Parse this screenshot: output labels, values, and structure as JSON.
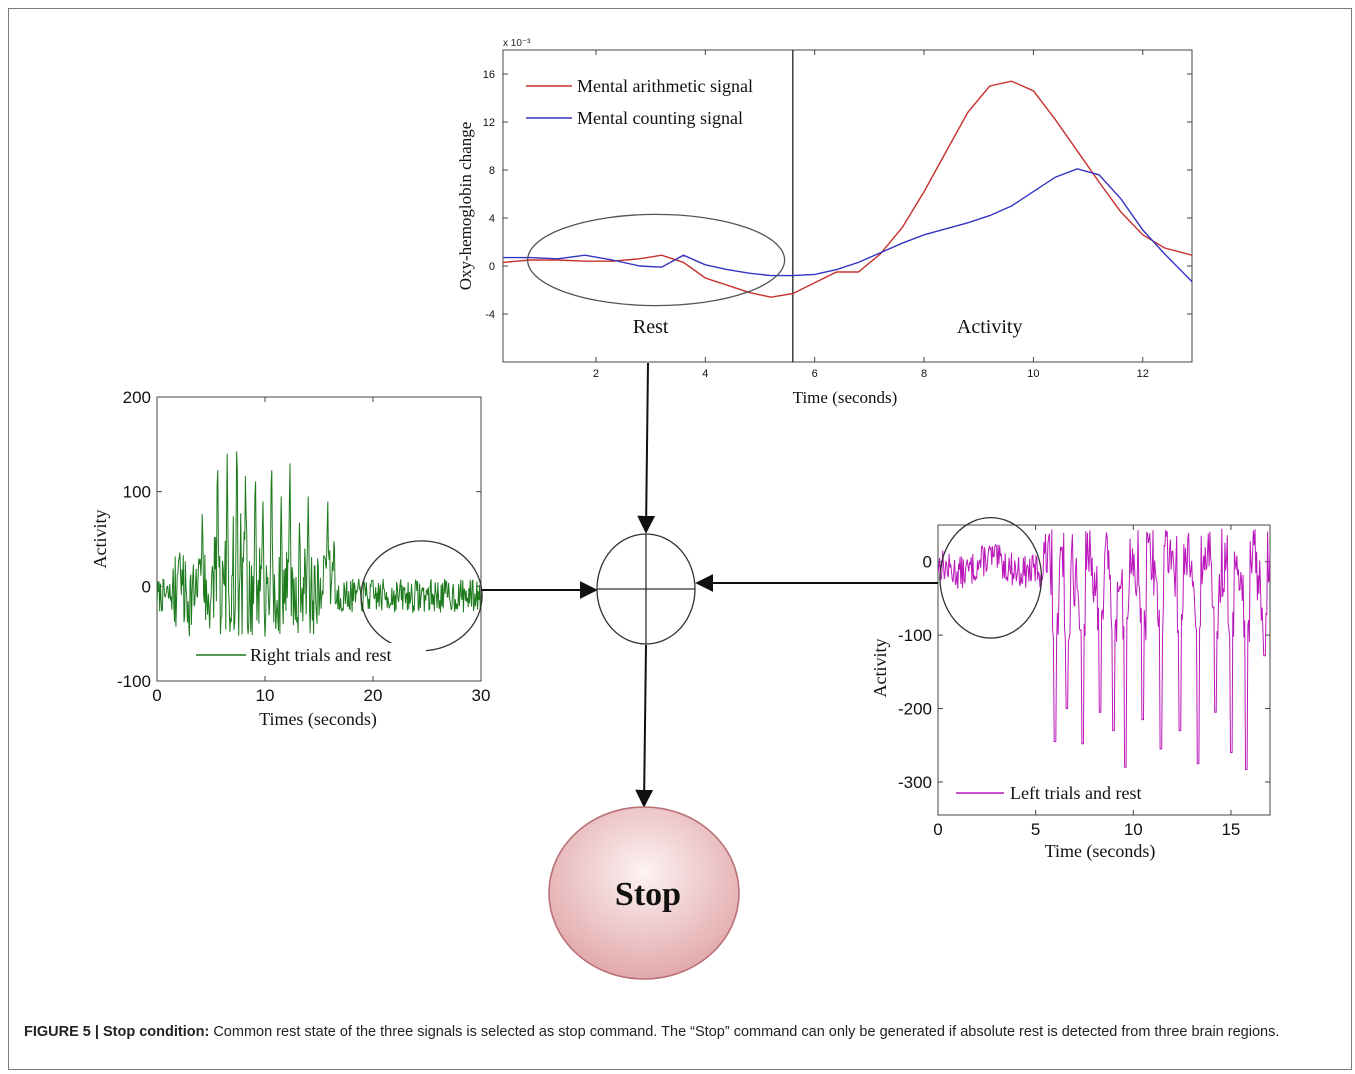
{
  "caption": {
    "label": "FIGURE 5 | Stop condition:",
    "text": " Common rest state of the three signals is selected as stop command. The “Stop” command can only be generated if absolute rest is detected from three brain regions."
  },
  "stop_label": "Stop",
  "colors": {
    "arithmetic": "#c8302c",
    "counting": "#3434c4",
    "right": "#1d7a1d",
    "left": "#bb18bb",
    "stop_fill_center": "#fdf3f3",
    "stop_fill_edge": "#e2a8ab",
    "stop_stroke": "#b87075"
  },
  "chart_data": [
    {
      "type": "line",
      "exponent_label": "x 10⁻³",
      "xlabel": "Time (seconds)",
      "ylabel": "Oxy-hemoglobin change",
      "xlim": [
        0.3,
        12.9
      ],
      "ylim": [
        -8,
        18
      ],
      "xticks": [
        2,
        4,
        6,
        8,
        10,
        12
      ],
      "yticks": [
        -4,
        0,
        4,
        8,
        12,
        16
      ],
      "legend_position": "top-left",
      "divider_x": 5.6,
      "region_labels": [
        {
          "text": "Rest",
          "x": 3.0,
          "y": -5.6
        },
        {
          "text": "Activity",
          "x": 9.2,
          "y": -5.6
        }
      ],
      "ellipse": {
        "cx": 3.1,
        "cy": 0.5,
        "rx_data": 2.35,
        "ry_data": 3.8
      },
      "series": [
        {
          "name": "Mental arithmetic signal",
          "x": [
            0.3,
            0.8,
            1.3,
            1.8,
            2.3,
            2.8,
            3.2,
            3.6,
            4.0,
            4.4,
            4.8,
            5.2,
            5.6,
            6.0,
            6.4,
            6.8,
            7.2,
            7.6,
            8.0,
            8.4,
            8.8,
            9.2,
            9.6,
            10.0,
            10.4,
            10.8,
            11.2,
            11.6,
            12.0,
            12.4,
            12.9
          ],
          "y": [
            0.3,
            0.5,
            0.5,
            0.4,
            0.4,
            0.6,
            0.9,
            0.3,
            -1.0,
            -1.6,
            -2.2,
            -2.6,
            -2.3,
            -1.4,
            -0.5,
            -0.5,
            1.0,
            3.2,
            6.2,
            9.5,
            12.8,
            15.0,
            15.4,
            14.6,
            12.2,
            9.6,
            7.0,
            4.5,
            2.6,
            1.5,
            0.9
          ]
        },
        {
          "name": "Mental counting signal",
          "x": [
            0.3,
            0.8,
            1.3,
            1.8,
            2.3,
            2.8,
            3.2,
            3.6,
            4.0,
            4.4,
            4.8,
            5.2,
            5.6,
            6.0,
            6.4,
            6.8,
            7.2,
            7.6,
            8.0,
            8.4,
            8.8,
            9.2,
            9.6,
            10.0,
            10.4,
            10.8,
            11.2,
            11.6,
            12.0,
            12.4,
            12.9
          ],
          "y": [
            0.7,
            0.7,
            0.6,
            0.9,
            0.5,
            0.0,
            -0.1,
            0.9,
            0.1,
            -0.3,
            -0.6,
            -0.8,
            -0.8,
            -0.7,
            -0.3,
            0.3,
            1.1,
            1.9,
            2.6,
            3.1,
            3.6,
            4.2,
            5.0,
            6.2,
            7.4,
            8.1,
            7.6,
            5.6,
            3.0,
            1.0,
            -1.3
          ]
        }
      ]
    },
    {
      "type": "line",
      "xlabel": "Times (seconds)",
      "ylabel": "Activity",
      "xlim": [
        0,
        30
      ],
      "ylim": [
        -100,
        200
      ],
      "xticks": [
        0,
        10,
        20,
        30
      ],
      "yticks": [
        -100,
        0,
        100,
        200
      ],
      "legend_position": "bottom",
      "ellipse": {
        "cx": 24.5,
        "cy": -10,
        "rx_data": 5.6,
        "ry_data": 58
      },
      "series": [
        {
          "name": "Right trials and rest",
          "samples": 480,
          "baseline": -10,
          "noise": 18,
          "active_interval": [
            1.5,
            16.5
          ],
          "peaks": [
            {
              "x": 2.1,
              "y": 45
            },
            {
              "x": 4.2,
              "y": 85
            },
            {
              "x": 5.6,
              "y": 155
            },
            {
              "x": 6.5,
              "y": 140
            },
            {
              "x": 7.4,
              "y": 180
            },
            {
              "x": 8.2,
              "y": 130
            },
            {
              "x": 9.1,
              "y": 140
            },
            {
              "x": 9.8,
              "y": 100
            },
            {
              "x": 10.6,
              "y": 155
            },
            {
              "x": 11.5,
              "y": 95
            },
            {
              "x": 12.3,
              "y": 145
            },
            {
              "x": 13.2,
              "y": 75
            },
            {
              "x": 14.0,
              "y": 95
            },
            {
              "x": 15.8,
              "y": 100
            },
            {
              "x": 16.4,
              "y": 60
            }
          ]
        }
      ]
    },
    {
      "type": "line",
      "xlabel": "Time (seconds)",
      "ylabel": "Activity",
      "xlim": [
        0,
        17
      ],
      "ylim": [
        -345,
        50
      ],
      "xticks": [
        0,
        5,
        10,
        15
      ],
      "yticks": [
        -300,
        -200,
        -100,
        0
      ],
      "legend_position": "bottom",
      "ellipse": {
        "cx": 2.7,
        "cy": -22,
        "rx_data": 2.6,
        "ry_data": 82
      },
      "series": [
        {
          "name": "Left trials and rest",
          "samples": 420,
          "rest_interval": [
            0,
            5.4
          ],
          "dips": [
            {
              "x": 6.0,
              "y": -245
            },
            {
              "x": 6.6,
              "y": -200
            },
            {
              "x": 7.4,
              "y": -248
            },
            {
              "x": 8.3,
              "y": -205
            },
            {
              "x": 9.0,
              "y": -230
            },
            {
              "x": 9.6,
              "y": -280
            },
            {
              "x": 10.5,
              "y": -215
            },
            {
              "x": 11.4,
              "y": -255
            },
            {
              "x": 12.4,
              "y": -230
            },
            {
              "x": 13.3,
              "y": -275
            },
            {
              "x": 14.2,
              "y": -205
            },
            {
              "x": 15.0,
              "y": -260
            },
            {
              "x": 15.8,
              "y": -283
            },
            {
              "x": 16.7,
              "y": -128
            }
          ]
        }
      ]
    }
  ]
}
